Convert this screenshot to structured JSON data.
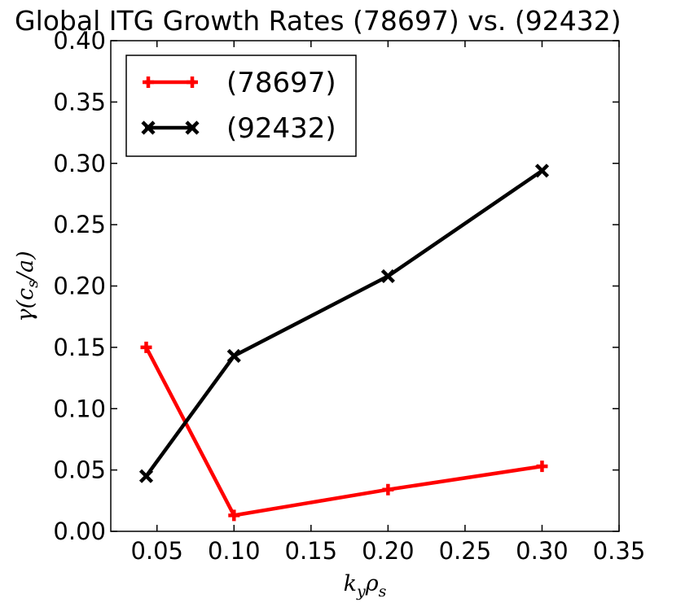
{
  "chart_data": {
    "type": "line",
    "title": "Global ITG Growth Rates (78697) vs. (92432)",
    "xlabel": "k_y ρ_s",
    "ylabel": "γ(c_s/a)",
    "xlim": [
      0.02,
      0.35
    ],
    "ylim": [
      0.0,
      0.4
    ],
    "xticks": [
      0.05,
      0.1,
      0.15,
      0.2,
      0.25,
      0.3,
      0.35
    ],
    "yticks": [
      0.0,
      0.05,
      0.1,
      0.15,
      0.2,
      0.25,
      0.3,
      0.35,
      0.4
    ],
    "xtick_labels": [
      "0.05",
      "0.10",
      "0.15",
      "0.20",
      "0.25",
      "0.30",
      "0.35"
    ],
    "ytick_labels": [
      "0.00",
      "0.05",
      "0.10",
      "0.15",
      "0.20",
      "0.25",
      "0.30",
      "0.35",
      "0.40"
    ],
    "grid": false,
    "legend_position": "top-left",
    "series": [
      {
        "name": "(78697)",
        "color": "#ff0000",
        "marker": "plus",
        "x": [
          0.043,
          0.1,
          0.2,
          0.3
        ],
        "y": [
          0.15,
          0.013,
          0.034,
          0.053
        ]
      },
      {
        "name": "(92432)",
        "color": "#000000",
        "marker": "x",
        "x": [
          0.043,
          0.1,
          0.2,
          0.3
        ],
        "y": [
          0.045,
          0.143,
          0.208,
          0.294
        ]
      }
    ]
  }
}
